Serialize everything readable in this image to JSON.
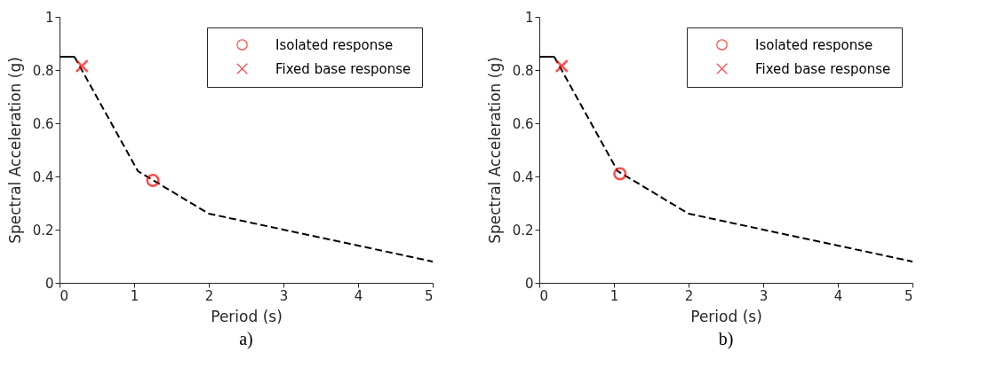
{
  "chart_data": [
    {
      "type": "line",
      "xlabel": "Period (s)",
      "ylabel": "Spectral Acceleration (g)",
      "annotations": [
        "a)"
      ],
      "xlim": [
        0,
        5
      ],
      "ylim": [
        0,
        1
      ],
      "xticks": [
        0,
        1,
        2,
        3,
        4,
        5
      ],
      "yticks": [
        0,
        0.2,
        0.4,
        0.6,
        0.8,
        1
      ],
      "legend": "top right",
      "grid": false,
      "series": [
        {
          "color": "#000000",
          "line_style": "solid",
          "x": [
            0,
            0.2
          ],
          "values": [
            0.85,
            0.85
          ]
        },
        {
          "color": "#000000",
          "line_style": "dashed",
          "x": [
            0.2,
            1.05,
            2,
            5
          ],
          "values": [
            0.85,
            0.42,
            0.26,
            0.08
          ]
        },
        {
          "type": "scatter",
          "name": "Isolated response",
          "color": "#ff0000",
          "marker": "circle",
          "x": [
            1.25
          ],
          "values": [
            0.385
          ]
        },
        {
          "type": "scatter",
          "name": "Fixed base response",
          "color": "#ff0000",
          "marker": "cross",
          "x": [
            0.3
          ],
          "values": [
            0.815
          ]
        }
      ]
    },
    {
      "type": "line",
      "xlabel": "Period (s)",
      "ylabel": "Spectral Acceleration (g)",
      "annotations": [
        "b)"
      ],
      "xlim": [
        0,
        5
      ],
      "ylim": [
        0,
        1
      ],
      "xticks": [
        0,
        1,
        2,
        3,
        4,
        5
      ],
      "yticks": [
        0,
        0.2,
        0.4,
        0.6,
        0.8,
        1
      ],
      "legend": "top right",
      "grid": false,
      "series": [
        {
          "color": "#000000",
          "line_style": "solid",
          "x": [
            0,
            0.2
          ],
          "values": [
            0.85,
            0.85
          ]
        },
        {
          "color": "#000000",
          "line_style": "dashed",
          "x": [
            0.2,
            1.05,
            2,
            5
          ],
          "values": [
            0.85,
            0.42,
            0.26,
            0.08
          ]
        },
        {
          "type": "scatter",
          "name": "Isolated response",
          "color": "#ff0000",
          "marker": "circle",
          "x": [
            1.08
          ],
          "values": [
            0.41
          ]
        },
        {
          "type": "scatter",
          "name": "Fixed base response",
          "color": "#ff0000",
          "marker": "cross",
          "x": [
            0.3
          ],
          "values": [
            0.815
          ]
        }
      ]
    }
  ]
}
